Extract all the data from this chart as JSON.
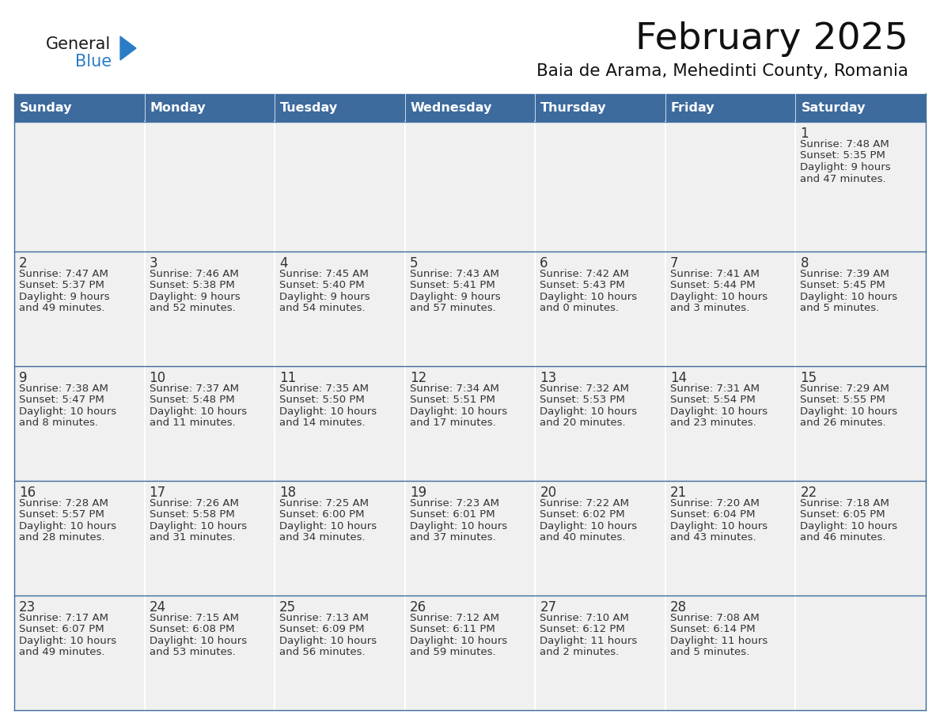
{
  "title": "February 2025",
  "subtitle": "Baia de Arama, Mehedinti County, Romania",
  "days_of_week": [
    "Sunday",
    "Monday",
    "Tuesday",
    "Wednesday",
    "Thursday",
    "Friday",
    "Saturday"
  ],
  "header_bg": "#3d6b9e",
  "header_text": "#ffffff",
  "cell_bg": "#f0f0f0",
  "cell_border_color": "#3d6b9e",
  "day_num_color": "#333333",
  "info_color": "#333333",
  "calendar_data": [
    [
      null,
      null,
      null,
      null,
      null,
      null,
      {
        "day": "1",
        "sunrise": "7:48 AM",
        "sunset": "5:35 PM",
        "daylight": "9 hours",
        "daylight2": "and 47 minutes."
      }
    ],
    [
      {
        "day": "2",
        "sunrise": "7:47 AM",
        "sunset": "5:37 PM",
        "daylight": "9 hours",
        "daylight2": "and 49 minutes."
      },
      {
        "day": "3",
        "sunrise": "7:46 AM",
        "sunset": "5:38 PM",
        "daylight": "9 hours",
        "daylight2": "and 52 minutes."
      },
      {
        "day": "4",
        "sunrise": "7:45 AM",
        "sunset": "5:40 PM",
        "daylight": "9 hours",
        "daylight2": "and 54 minutes."
      },
      {
        "day": "5",
        "sunrise": "7:43 AM",
        "sunset": "5:41 PM",
        "daylight": "9 hours",
        "daylight2": "and 57 minutes."
      },
      {
        "day": "6",
        "sunrise": "7:42 AM",
        "sunset": "5:43 PM",
        "daylight": "10 hours",
        "daylight2": "and 0 minutes."
      },
      {
        "day": "7",
        "sunrise": "7:41 AM",
        "sunset": "5:44 PM",
        "daylight": "10 hours",
        "daylight2": "and 3 minutes."
      },
      {
        "day": "8",
        "sunrise": "7:39 AM",
        "sunset": "5:45 PM",
        "daylight": "10 hours",
        "daylight2": "and 5 minutes."
      }
    ],
    [
      {
        "day": "9",
        "sunrise": "7:38 AM",
        "sunset": "5:47 PM",
        "daylight": "10 hours",
        "daylight2": "and 8 minutes."
      },
      {
        "day": "10",
        "sunrise": "7:37 AM",
        "sunset": "5:48 PM",
        "daylight": "10 hours",
        "daylight2": "and 11 minutes."
      },
      {
        "day": "11",
        "sunrise": "7:35 AM",
        "sunset": "5:50 PM",
        "daylight": "10 hours",
        "daylight2": "and 14 minutes."
      },
      {
        "day": "12",
        "sunrise": "7:34 AM",
        "sunset": "5:51 PM",
        "daylight": "10 hours",
        "daylight2": "and 17 minutes."
      },
      {
        "day": "13",
        "sunrise": "7:32 AM",
        "sunset": "5:53 PM",
        "daylight": "10 hours",
        "daylight2": "and 20 minutes."
      },
      {
        "day": "14",
        "sunrise": "7:31 AM",
        "sunset": "5:54 PM",
        "daylight": "10 hours",
        "daylight2": "and 23 minutes."
      },
      {
        "day": "15",
        "sunrise": "7:29 AM",
        "sunset": "5:55 PM",
        "daylight": "10 hours",
        "daylight2": "and 26 minutes."
      }
    ],
    [
      {
        "day": "16",
        "sunrise": "7:28 AM",
        "sunset": "5:57 PM",
        "daylight": "10 hours",
        "daylight2": "and 28 minutes."
      },
      {
        "day": "17",
        "sunrise": "7:26 AM",
        "sunset": "5:58 PM",
        "daylight": "10 hours",
        "daylight2": "and 31 minutes."
      },
      {
        "day": "18",
        "sunrise": "7:25 AM",
        "sunset": "6:00 PM",
        "daylight": "10 hours",
        "daylight2": "and 34 minutes."
      },
      {
        "day": "19",
        "sunrise": "7:23 AM",
        "sunset": "6:01 PM",
        "daylight": "10 hours",
        "daylight2": "and 37 minutes."
      },
      {
        "day": "20",
        "sunrise": "7:22 AM",
        "sunset": "6:02 PM",
        "daylight": "10 hours",
        "daylight2": "and 40 minutes."
      },
      {
        "day": "21",
        "sunrise": "7:20 AM",
        "sunset": "6:04 PM",
        "daylight": "10 hours",
        "daylight2": "and 43 minutes."
      },
      {
        "day": "22",
        "sunrise": "7:18 AM",
        "sunset": "6:05 PM",
        "daylight": "10 hours",
        "daylight2": "and 46 minutes."
      }
    ],
    [
      {
        "day": "23",
        "sunrise": "7:17 AM",
        "sunset": "6:07 PM",
        "daylight": "10 hours",
        "daylight2": "and 49 minutes."
      },
      {
        "day": "24",
        "sunrise": "7:15 AM",
        "sunset": "6:08 PM",
        "daylight": "10 hours",
        "daylight2": "and 53 minutes."
      },
      {
        "day": "25",
        "sunrise": "7:13 AM",
        "sunset": "6:09 PM",
        "daylight": "10 hours",
        "daylight2": "and 56 minutes."
      },
      {
        "day": "26",
        "sunrise": "7:12 AM",
        "sunset": "6:11 PM",
        "daylight": "10 hours",
        "daylight2": "and 59 minutes."
      },
      {
        "day": "27",
        "sunrise": "7:10 AM",
        "sunset": "6:12 PM",
        "daylight": "11 hours",
        "daylight2": "and 2 minutes."
      },
      {
        "day": "28",
        "sunrise": "7:08 AM",
        "sunset": "6:14 PM",
        "daylight": "11 hours",
        "daylight2": "and 5 minutes."
      },
      null
    ]
  ]
}
